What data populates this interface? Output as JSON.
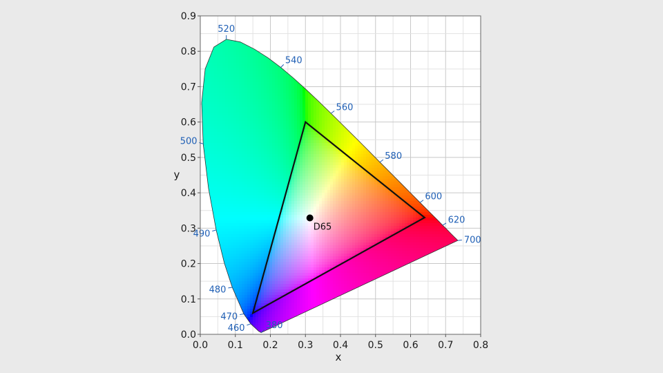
{
  "chart_data": {
    "type": "scatter",
    "title": "",
    "xlabel": "x",
    "ylabel": "y",
    "xlim": [
      0.0,
      0.8
    ],
    "ylim": [
      0.0,
      0.9
    ],
    "x_ticks": [
      "0.0",
      "0.1",
      "0.2",
      "0.3",
      "0.4",
      "0.5",
      "0.6",
      "0.7",
      "0.8"
    ],
    "y_ticks": [
      "0.0",
      "0.1",
      "0.2",
      "0.3",
      "0.4",
      "0.5",
      "0.6",
      "0.7",
      "0.8",
      "0.9"
    ],
    "grid": true,
    "spectral_locus": [
      [
        0.1741,
        0.005
      ],
      [
        0.1738,
        0.0049
      ],
      [
        0.1666,
        0.0089
      ],
      [
        0.144,
        0.0297
      ],
      [
        0.1241,
        0.0578
      ],
      [
        0.0913,
        0.1327
      ],
      [
        0.0687,
        0.2007
      ],
      [
        0.0454,
        0.295
      ],
      [
        0.0235,
        0.4127
      ],
      [
        0.0082,
        0.5384
      ],
      [
        0.0039,
        0.6548
      ],
      [
        0.0139,
        0.7502
      ],
      [
        0.0389,
        0.812
      ],
      [
        0.0743,
        0.8338
      ],
      [
        0.1142,
        0.8262
      ],
      [
        0.1547,
        0.8059
      ],
      [
        0.1929,
        0.7816
      ],
      [
        0.2296,
        0.7543
      ],
      [
        0.2658,
        0.7243
      ],
      [
        0.3016,
        0.6923
      ],
      [
        0.3373,
        0.6589
      ],
      [
        0.3731,
        0.6245
      ],
      [
        0.4087,
        0.5896
      ],
      [
        0.4441,
        0.5547
      ],
      [
        0.4788,
        0.5202
      ],
      [
        0.5125,
        0.4866
      ],
      [
        0.5448,
        0.4544
      ],
      [
        0.5752,
        0.4242
      ],
      [
        0.6029,
        0.3965
      ],
      [
        0.627,
        0.3725
      ],
      [
        0.6482,
        0.3514
      ],
      [
        0.6658,
        0.334
      ],
      [
        0.6801,
        0.3197
      ],
      [
        0.6915,
        0.3083
      ],
      [
        0.7006,
        0.2993
      ],
      [
        0.7079,
        0.292
      ],
      [
        0.714,
        0.2859
      ],
      [
        0.719,
        0.2809
      ],
      [
        0.723,
        0.277
      ],
      [
        0.726,
        0.274
      ],
      [
        0.7283,
        0.2717
      ],
      [
        0.73,
        0.27
      ],
      [
        0.7347,
        0.2653
      ]
    ],
    "wavelength_labels": [
      {
        "label": "380",
        "x": 0.1741,
        "y": 0.005,
        "dx": 1,
        "dy": 1
      },
      {
        "label": "460",
        "x": 0.144,
        "y": 0.0297,
        "dx": -1,
        "dy": -0.35
      },
      {
        "label": "470",
        "x": 0.1241,
        "y": 0.0578,
        "dx": -1,
        "dy": -0.2
      },
      {
        "label": "480",
        "x": 0.0913,
        "y": 0.1327,
        "dx": -1,
        "dy": -0.15
      },
      {
        "label": "490",
        "x": 0.0454,
        "y": 0.295,
        "dx": -1,
        "dy": -0.3
      },
      {
        "label": "500",
        "x": 0.0082,
        "y": 0.5384,
        "dx": -1,
        "dy": 0.3
      },
      {
        "label": "520",
        "x": 0.0743,
        "y": 0.8338,
        "dx": 0,
        "dy": 1
      },
      {
        "label": "540",
        "x": 0.2296,
        "y": 0.7543,
        "dx": 0.8,
        "dy": 0.8
      },
      {
        "label": "560",
        "x": 0.3731,
        "y": 0.6245,
        "dx": 0.8,
        "dy": 0.6
      },
      {
        "label": "580",
        "x": 0.5125,
        "y": 0.4866,
        "dx": 0.8,
        "dy": 0.6
      },
      {
        "label": "600",
        "x": 0.627,
        "y": 0.3725,
        "dx": 0.8,
        "dy": 0.6
      },
      {
        "label": "620",
        "x": 0.6915,
        "y": 0.3083,
        "dx": 0.8,
        "dy": 0.5
      },
      {
        "label": "700",
        "x": 0.7347,
        "y": 0.2653,
        "dx": 1,
        "dy": 0.1
      }
    ],
    "gamut_triangle": [
      [
        0.64,
        0.33
      ],
      [
        0.3,
        0.6
      ],
      [
        0.15,
        0.06
      ]
    ],
    "white_point": {
      "label": "D65",
      "x": 0.3127,
      "y": 0.329
    }
  },
  "colors": {
    "background": "#eaeaea",
    "plot_background": "#ffffff",
    "grid": "#c8c8c8",
    "wavelength_label": "#1f5fb5",
    "triangle": "#111111"
  }
}
